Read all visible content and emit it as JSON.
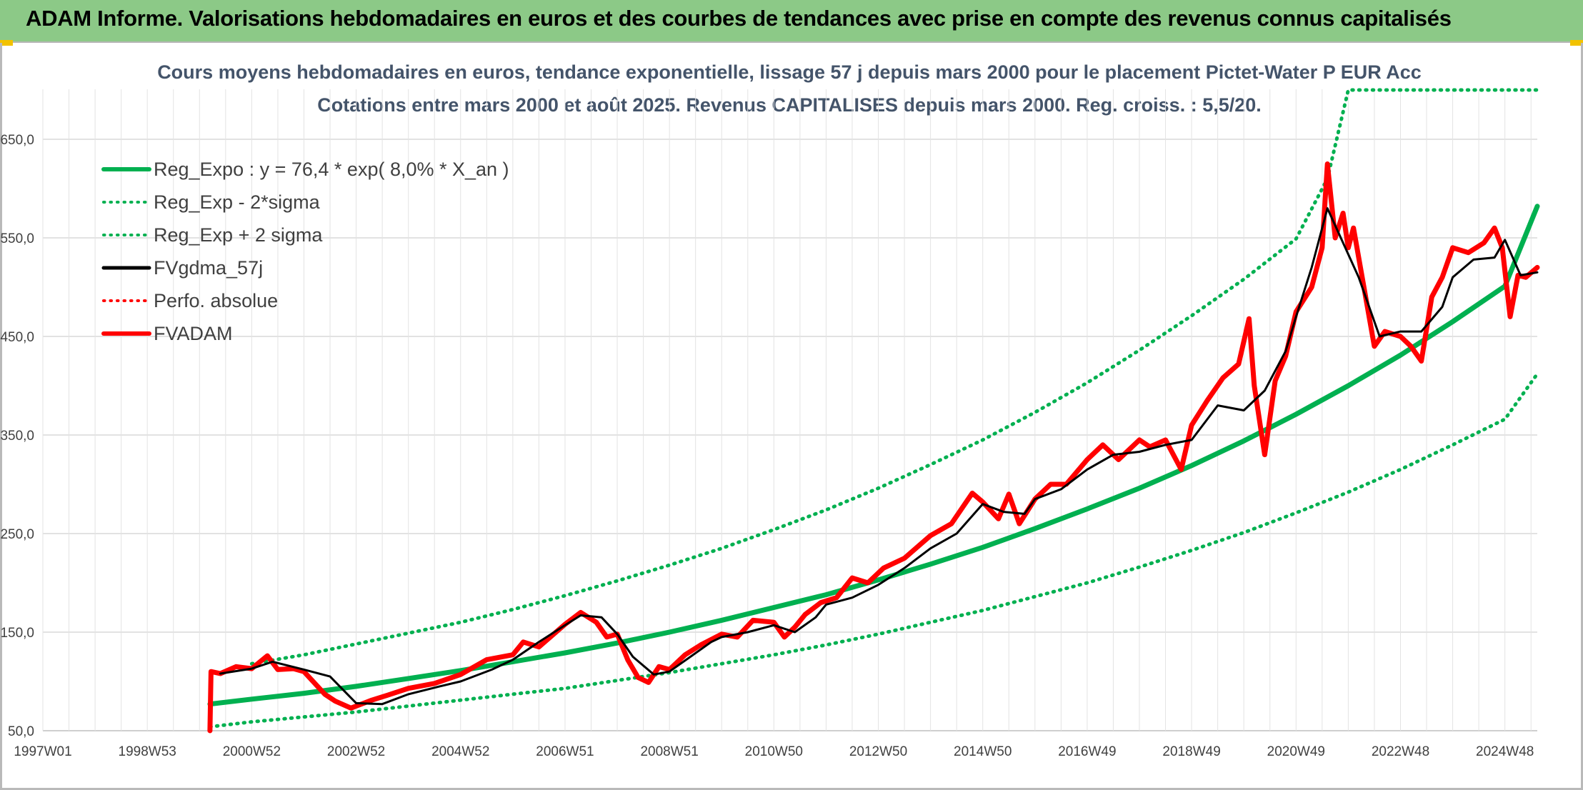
{
  "banner": {
    "title": "ADAM Informe. Valorisations hebdomadaires en euros et des courbes de tendances avec prise en compte des revenus connus capitalisés"
  },
  "colors": {
    "banner_bg": "#8cc987",
    "regression": "#00b050",
    "fund_line": "#ff0000",
    "moving_average": "#000000",
    "title_text": "#44546a"
  },
  "chart_data": {
    "type": "line",
    "title": "Cours moyens hebdomadaires en euros, tendance exponentielle, lissage 57 j depuis mars 2000 pour le placement Pictet-Water P EUR Acc",
    "subtitle": "Cotations entre mars 2000 et août 2025. Revenus CAPITALISES depuis mars 2000. Reg. croiss. : 5,5/20.",
    "xlabel": "",
    "ylabel": "",
    "xlim": [
      1997.0,
      2025.62
    ],
    "ylim": [
      50,
      650
    ],
    "y_axis_bottom_value": 50,
    "x_ticks": [
      {
        "label": "1997W01",
        "x": 1997.0
      },
      {
        "label": "1998W53",
        "x": 1999.0
      },
      {
        "label": "2000W52",
        "x": 2001.0
      },
      {
        "label": "2002W52",
        "x": 2003.0
      },
      {
        "label": "2004W52",
        "x": 2005.0
      },
      {
        "label": "2006W51",
        "x": 2007.0
      },
      {
        "label": "2008W51",
        "x": 2009.0
      },
      {
        "label": "2010W50",
        "x": 2011.0
      },
      {
        "label": "2012W50",
        "x": 2013.0
      },
      {
        "label": "2014W50",
        "x": 2015.0
      },
      {
        "label": "2016W49",
        "x": 2017.0
      },
      {
        "label": "2018W49",
        "x": 2019.0
      },
      {
        "label": "2020W49",
        "x": 2021.0
      },
      {
        "label": "2022W48",
        "x": 2023.0
      },
      {
        "label": "2024W48",
        "x": 2025.0
      }
    ],
    "y_ticks": [
      {
        "label": "50,0",
        "value": 50
      },
      {
        "label": "150,0",
        "value": 150
      },
      {
        "label": "250,0",
        "value": 250
      },
      {
        "label": "350,0",
        "value": 350
      },
      {
        "label": "450,0",
        "value": 450
      },
      {
        "label": "550,0",
        "value": 550
      },
      {
        "label": "650,0",
        "value": 650
      }
    ],
    "grid": true,
    "legend_position": "top-left",
    "series": [
      {
        "name": "Reg_Expo : y = 76,4 * exp( 8,0% *  X_an )",
        "style": "solid-thick",
        "color": "#00b050",
        "x": [
          2000.2,
          2001.0,
          2002.0,
          2003.0,
          2004.0,
          2005.0,
          2006.0,
          2007.0,
          2008.0,
          2009.0,
          2010.0,
          2011.0,
          2012.0,
          2013.0,
          2014.0,
          2015.0,
          2016.0,
          2017.0,
          2018.0,
          2019.0,
          2020.0,
          2021.0,
          2022.0,
          2023.0,
          2024.0,
          2025.0,
          2025.62
        ],
        "y": [
          77,
          82,
          88,
          95,
          103,
          111,
          120,
          129,
          139,
          150,
          162,
          175,
          188,
          203,
          219,
          236,
          255,
          275,
          296,
          319,
          344,
          371,
          400,
          431,
          465,
          501,
          582
        ]
      },
      {
        "name": "Reg_Exp - 2*sigma",
        "style": "dotted",
        "color": "#00b050",
        "x": [
          2000.2,
          2001.0,
          2002.0,
          2003.0,
          2004.0,
          2005.0,
          2006.0,
          2007.0,
          2008.0,
          2009.0,
          2010.0,
          2011.0,
          2012.0,
          2013.0,
          2014.0,
          2015.0,
          2016.0,
          2017.0,
          2018.0,
          2019.0,
          2020.0,
          2021.0,
          2022.0,
          2023.0,
          2024.0,
          2025.0,
          2025.62
        ],
        "y": [
          54,
          59,
          64,
          69,
          75,
          81,
          87,
          93,
          101,
          109,
          118,
          127,
          137,
          148,
          160,
          172,
          186,
          200,
          216,
          233,
          251,
          271,
          292,
          315,
          340,
          366,
          412
        ]
      },
      {
        "name": "Reg_Exp + 2 sigma",
        "style": "dotted",
        "color": "#00b050",
        "x": [
          2001.0,
          2002.0,
          2003.0,
          2004.0,
          2005.0,
          2006.0,
          2007.0,
          2008.0,
          2009.0,
          2010.0,
          2011.0,
          2012.0,
          2013.0,
          2014.0,
          2015.0,
          2016.0,
          2017.0,
          2018.0,
          2019.0,
          2020.0,
          2021.0,
          2021.6,
          2022.0,
          2023.0,
          2024.0,
          2025.0,
          2025.62
        ],
        "y": [
          118,
          127,
          138,
          149,
          160,
          173,
          187,
          202,
          218,
          235,
          254,
          274,
          296,
          320,
          345,
          373,
          403,
          436,
          471,
          508,
          549,
          610,
          700,
          700,
          700,
          700,
          700
        ]
      },
      {
        "name": "FVgdma_57j",
        "style": "solid",
        "color": "#000000",
        "x": [
          2000.4,
          2001.0,
          2001.4,
          2002.0,
          2002.5,
          2003.0,
          2003.5,
          2004.0,
          2004.6,
          2005.0,
          2005.6,
          2006.0,
          2006.5,
          2007.0,
          2007.3,
          2007.7,
          2008.0,
          2008.3,
          2008.7,
          2009.0,
          2009.4,
          2009.8,
          2010.0,
          2010.5,
          2011.0,
          2011.4,
          2011.8,
          2012.0,
          2012.5,
          2013.0,
          2013.5,
          2014.0,
          2014.5,
          2015.0,
          2015.4,
          2015.8,
          2016.0,
          2016.5,
          2017.0,
          2017.5,
          2018.0,
          2018.5,
          2019.0,
          2019.5,
          2020.0,
          2020.4,
          2020.8,
          2021.0,
          2021.3,
          2021.6,
          2021.9,
          2022.2,
          2022.6,
          2023.0,
          2023.4,
          2023.8,
          2024.0,
          2024.4,
          2024.8,
          2025.0,
          2025.3,
          2025.62
        ],
        "y": [
          108,
          113,
          120,
          112,
          105,
          78,
          77,
          87,
          95,
          100,
          112,
          122,
          140,
          157,
          167,
          165,
          148,
          125,
          107,
          110,
          125,
          140,
          145,
          150,
          157,
          150,
          165,
          178,
          185,
          198,
          215,
          235,
          250,
          280,
          272,
          270,
          285,
          295,
          315,
          330,
          333,
          340,
          345,
          380,
          375,
          395,
          435,
          470,
          520,
          580,
          545,
          510,
          450,
          455,
          455,
          480,
          510,
          528,
          530,
          548,
          512,
          515
        ]
      },
      {
        "name": "Perfo. absolue",
        "style": "dotted",
        "color": "#ff0000",
        "x": [],
        "y": []
      },
      {
        "name": "FVADAM",
        "style": "solid-thick",
        "color": "#ff0000",
        "x": [
          2000.2,
          2000.22,
          2000.4,
          2000.7,
          2001.0,
          2001.3,
          2001.5,
          2001.8,
          2002.0,
          2002.4,
          2002.6,
          2002.9,
          2003.0,
          2003.3,
          2003.6,
          2004.0,
          2004.5,
          2005.0,
          2005.5,
          2006.0,
          2006.2,
          2006.5,
          2007.0,
          2007.3,
          2007.6,
          2007.8,
          2008.0,
          2008.2,
          2008.4,
          2008.6,
          2008.8,
          2009.0,
          2009.3,
          2009.6,
          2010.0,
          2010.3,
          2010.6,
          2011.0,
          2011.2,
          2011.4,
          2011.6,
          2011.9,
          2012.2,
          2012.5,
          2012.8,
          2013.1,
          2013.5,
          2014.0,
          2014.4,
          2014.8,
          2015.0,
          2015.3,
          2015.5,
          2015.7,
          2016.0,
          2016.3,
          2016.6,
          2017.0,
          2017.3,
          2017.6,
          2018.0,
          2018.2,
          2018.5,
          2018.8,
          2019.0,
          2019.3,
          2019.6,
          2019.9,
          2020.1,
          2020.2,
          2020.4,
          2020.6,
          2020.8,
          2021.0,
          2021.3,
          2021.5,
          2021.6,
          2021.75,
          2021.9,
          2022.0,
          2022.1,
          2022.3,
          2022.5,
          2022.7,
          2023.0,
          2023.2,
          2023.4,
          2023.6,
          2023.8,
          2024.0,
          2024.3,
          2024.6,
          2024.8,
          2024.95,
          2025.1,
          2025.25,
          2025.4,
          2025.62
        ],
        "y": [
          50,
          110,
          108,
          115,
          113,
          126,
          112,
          113,
          110,
          87,
          80,
          73,
          75,
          81,
          86,
          93,
          98,
          107,
          122,
          127,
          140,
          135,
          158,
          170,
          160,
          145,
          148,
          122,
          104,
          99,
          115,
          112,
          127,
          137,
          148,
          145,
          162,
          160,
          145,
          155,
          168,
          180,
          185,
          205,
          200,
          215,
          225,
          248,
          260,
          291,
          282,
          265,
          290,
          260,
          285,
          300,
          300,
          325,
          340,
          325,
          345,
          338,
          345,
          315,
          360,
          385,
          408,
          422,
          468,
          400,
          330,
          405,
          430,
          475,
          500,
          540,
          625,
          550,
          575,
          540,
          560,
          500,
          440,
          455,
          450,
          440,
          425,
          490,
          510,
          540,
          535,
          545,
          560,
          540,
          470,
          512,
          510,
          520
        ]
      }
    ]
  }
}
